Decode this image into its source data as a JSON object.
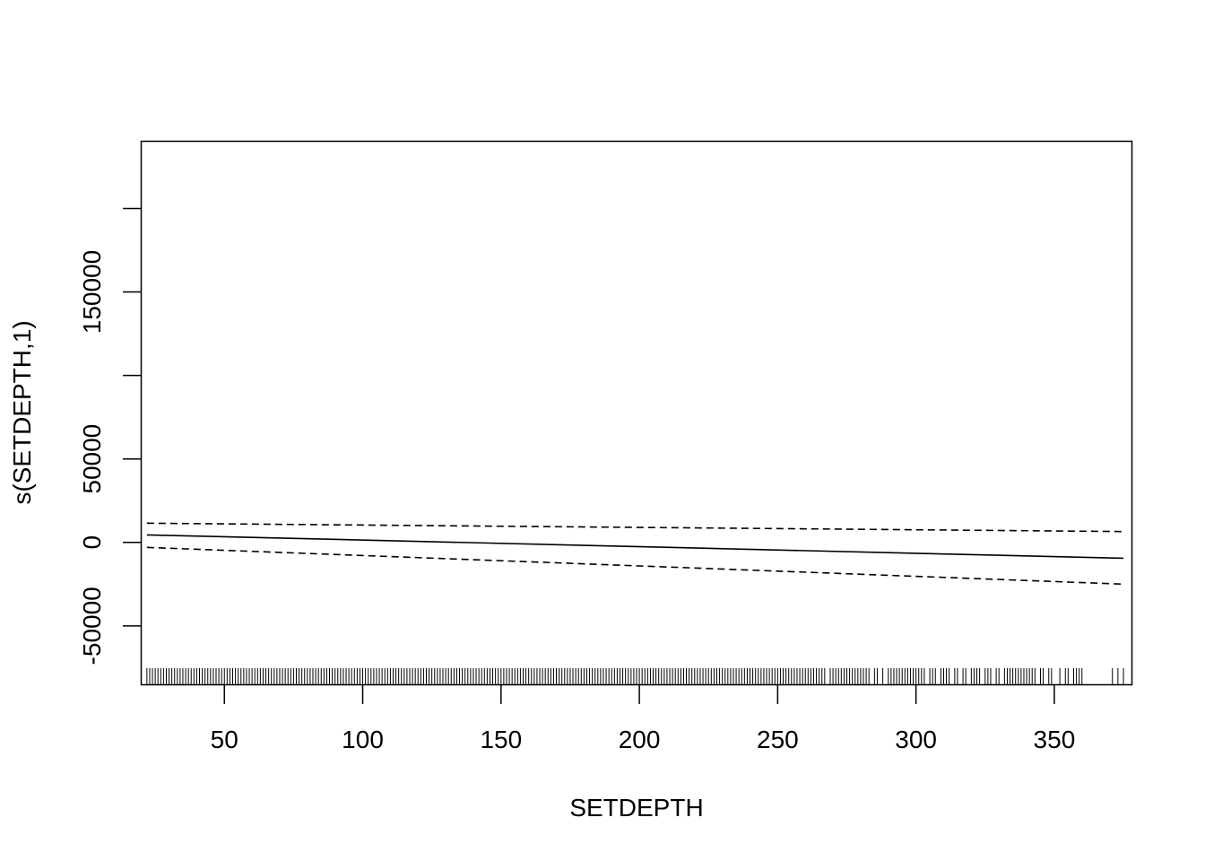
{
  "chart_data": {
    "type": "line",
    "title": "",
    "xlabel": "SETDEPTH",
    "ylabel": "s(SETDEPTH,1)",
    "xlim": [
      20.1,
      377.9
    ],
    "ylim": [
      -85000,
      240000
    ],
    "x_ticks": [
      50,
      100,
      150,
      200,
      250,
      300,
      350
    ],
    "x_tick_labels": [
      "50",
      "100",
      "150",
      "200",
      "250",
      "300",
      "350"
    ],
    "y_ticks": [
      -50000,
      0,
      50000,
      100000,
      150000,
      200000
    ],
    "y_tick_labels": [
      "-50000",
      "0",
      "50000",
      "",
      "150000",
      ""
    ],
    "grid": false,
    "legend": "none",
    "series": [
      {
        "style": "solid",
        "x": [
          22,
          375
        ],
        "y": [
          4500,
          -9500
        ]
      },
      {
        "style": "dashed",
        "x": [
          22,
          375
        ],
        "y": [
          11500,
          6500
        ]
      },
      {
        "style": "dashed",
        "x": [
          22,
          375
        ],
        "y": [
          -3000,
          -25000
        ]
      }
    ],
    "rug_x": [
      22,
      23,
      24,
      25,
      26,
      27,
      28,
      29,
      30,
      31,
      32,
      33,
      34,
      35,
      36,
      37,
      38,
      39,
      40,
      41,
      42,
      43,
      44,
      45,
      46,
      47,
      48,
      49,
      50,
      51,
      52,
      53,
      54,
      55,
      56,
      57,
      58,
      59,
      60,
      61,
      62,
      63,
      64,
      65,
      66,
      67,
      68,
      69,
      70,
      71,
      72,
      73,
      74,
      75,
      76,
      77,
      78,
      79,
      80,
      81,
      82,
      83,
      84,
      85,
      86,
      87,
      88,
      89,
      90,
      91,
      92,
      93,
      94,
      95,
      96,
      97,
      98,
      99,
      100,
      101,
      102,
      103,
      104,
      105,
      106,
      107,
      108,
      109,
      110,
      111,
      112,
      113,
      114,
      115,
      116,
      117,
      118,
      119,
      120,
      121,
      122,
      123,
      124,
      125,
      126,
      127,
      128,
      129,
      130,
      131,
      132,
      133,
      134,
      135,
      136,
      137,
      138,
      139,
      140,
      141,
      142,
      143,
      144,
      145,
      146,
      147,
      148,
      149,
      150,
      151,
      152,
      153,
      154,
      155,
      156,
      157,
      158,
      159,
      160,
      161,
      162,
      163,
      164,
      165,
      166,
      167,
      168,
      169,
      170,
      171,
      172,
      173,
      174,
      175,
      176,
      177,
      178,
      179,
      180,
      181,
      182,
      183,
      184,
      185,
      186,
      187,
      188,
      189,
      190,
      191,
      192,
      193,
      194,
      195,
      196,
      197,
      198,
      199,
      200,
      201,
      202,
      203,
      204,
      205,
      206,
      207,
      208,
      209,
      210,
      211,
      212,
      213,
      214,
      215,
      216,
      217,
      218,
      219,
      220,
      221,
      222,
      223,
      224,
      225,
      226,
      227,
      228,
      229,
      230,
      231,
      232,
      233,
      234,
      235,
      236,
      237,
      238,
      239,
      240,
      241,
      242,
      243,
      244,
      245,
      246,
      247,
      248,
      249,
      250,
      251,
      252,
      253,
      254,
      255,
      256,
      257,
      258,
      259,
      260,
      261,
      262,
      263,
      264,
      265,
      266,
      267,
      269,
      270,
      271,
      272,
      273,
      274,
      275,
      276,
      277,
      278,
      279,
      280,
      281,
      282,
      283,
      285,
      286,
      288,
      290,
      291,
      292,
      293,
      294,
      295,
      296,
      297,
      298,
      299,
      300,
      301,
      302,
      303,
      305,
      306,
      307,
      309,
      310,
      311,
      312,
      314,
      315,
      317,
      318,
      320,
      321,
      322,
      323,
      325,
      326,
      327,
      329,
      330,
      332,
      333,
      334,
      335,
      336,
      337,
      338,
      339,
      340,
      341,
      342,
      343,
      345,
      346,
      348,
      349,
      352,
      354,
      355,
      357,
      358,
      359,
      360,
      371,
      373,
      375
    ]
  }
}
